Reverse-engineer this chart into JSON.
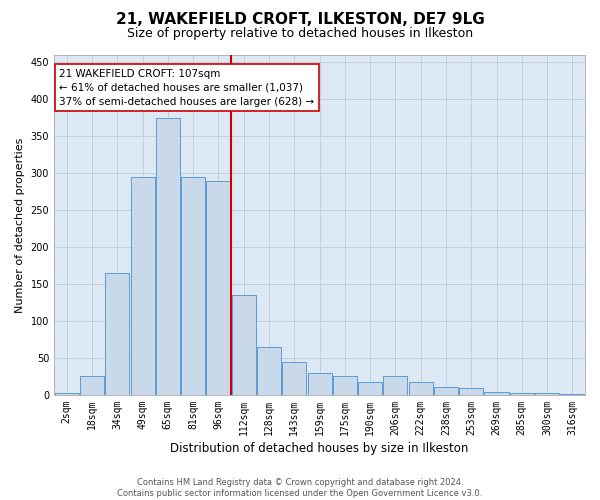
{
  "title": "21, WAKEFIELD CROFT, ILKESTON, DE7 9LG",
  "subtitle": "Size of property relative to detached houses in Ilkeston",
  "xlabel": "Distribution of detached houses by size in Ilkeston",
  "ylabel": "Number of detached properties",
  "footer_line1": "Contains HM Land Registry data © Crown copyright and database right 2024.",
  "footer_line2": "Contains public sector information licensed under the Open Government Licence v3.0.",
  "annotation_title": "21 WAKEFIELD CROFT: 107sqm",
  "annotation_line1": "← 61% of detached houses are smaller (1,037)",
  "annotation_line2": "37% of semi-detached houses are larger (628) →",
  "bar_labels": [
    "2sqm",
    "18sqm",
    "34sqm",
    "49sqm",
    "65sqm",
    "81sqm",
    "96sqm",
    "112sqm",
    "128sqm",
    "143sqm",
    "159sqm",
    "175sqm",
    "190sqm",
    "206sqm",
    "222sqm",
    "238sqm",
    "253sqm",
    "269sqm",
    "285sqm",
    "300sqm",
    "316sqm"
  ],
  "bar_values": [
    2,
    25,
    165,
    295,
    375,
    295,
    290,
    135,
    65,
    45,
    30,
    25,
    17,
    25,
    17,
    11,
    10,
    4,
    2,
    2,
    1
  ],
  "bar_color": "#c9d9ea",
  "bar_edge_color": "#5b9bd5",
  "vline_color": "#cc0000",
  "vline_x": 6.5,
  "annotation_box_color": "#ffffff",
  "annotation_box_edge_color": "#cc0000",
  "background_color": "#ffffff",
  "axes_bg_color": "#dce9f5",
  "grid_color": "#c0d0e0",
  "ylim": [
    0,
    460
  ],
  "yticks": [
    0,
    50,
    100,
    150,
    200,
    250,
    300,
    350,
    400,
    450
  ],
  "title_fontsize": 11,
  "subtitle_fontsize": 9,
  "ylabel_fontsize": 8,
  "xlabel_fontsize": 8.5,
  "tick_fontsize": 7,
  "annotation_fontsize": 7.5,
  "footer_fontsize": 6
}
